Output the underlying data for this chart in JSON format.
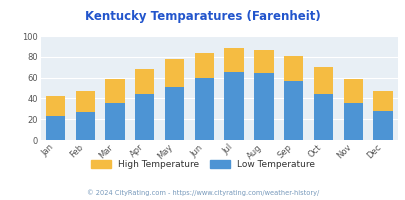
{
  "title": "Kentucky Temparatures (Farenheit)",
  "months": [
    "Jan",
    "Feb",
    "Mar",
    "Apr",
    "May",
    "Jun",
    "Jul",
    "Aug",
    "Sep",
    "Oct",
    "Nov",
    "Dec"
  ],
  "low_temps": [
    23,
    27,
    36,
    44,
    51,
    60,
    65,
    64,
    57,
    44,
    36,
    28
  ],
  "high_temps": [
    42,
    47,
    59,
    68,
    78,
    84,
    88,
    87,
    81,
    70,
    59,
    47
  ],
  "low_color": "#4d94d4",
  "high_color": "#f5bc42",
  "bg_color": "#e8eff5",
  "title_color": "#2255cc",
  "ylabel_max": 100,
  "ylabel_min": 0,
  "ylabel_step": 20,
  "legend_label_high": "High Temperature",
  "legend_label_low": "Low Temperature",
  "footer": "© 2024 CityRating.com - https://www.cityrating.com/weather-history/"
}
